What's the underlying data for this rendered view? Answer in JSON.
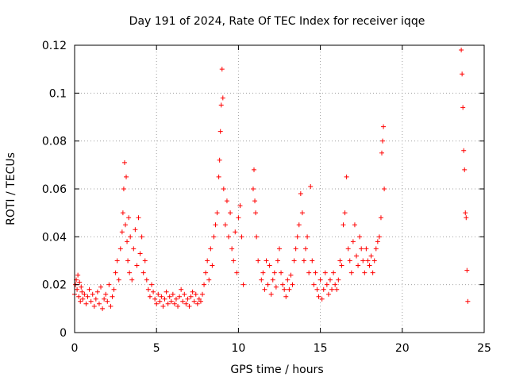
{
  "chart_data": {
    "type": "scatter",
    "title": "Day 191 of 2024, Rate Of TEC Index for receiver iqqe",
    "xlabel": "GPS time / hours",
    "ylabel": "ROTI / TECUs",
    "xlim": [
      0,
      25
    ],
    "ylim": [
      0,
      0.12
    ],
    "xticks": [
      "0",
      "5",
      "10",
      "15",
      "20",
      "25"
    ],
    "yticks": [
      "0",
      "0.02",
      "0.04",
      "0.06",
      "0.08",
      "0.1",
      "0.12"
    ],
    "grid": true,
    "marker": "+",
    "color": "#ff0000",
    "series": [
      {
        "x": [
          0.0,
          0.05,
          0.1,
          0.15,
          0.2,
          0.25,
          0.3,
          0.35,
          0.4,
          0.45,
          0.5,
          0.6,
          0.7,
          0.8,
          0.9,
          1.0,
          1.1,
          1.2,
          1.3,
          1.4,
          1.5,
          1.6,
          1.7,
          1.8,
          1.9,
          2.0,
          2.1,
          2.2,
          2.3,
          2.4,
          2.5,
          2.6,
          2.7,
          2.8,
          2.9,
          2.95,
          3.0,
          3.05,
          3.1,
          3.15,
          3.2,
          3.25,
          3.3,
          3.35,
          3.4,
          3.5,
          3.6,
          3.7,
          3.8,
          3.9,
          4.0,
          4.1,
          4.2,
          4.3,
          4.4,
          4.5,
          4.6,
          4.7,
          4.8,
          4.9,
          5.0,
          5.1,
          5.2,
          5.3,
          5.4,
          5.5,
          5.6,
          5.7,
          5.8,
          5.9,
          6.0,
          6.1,
          6.2,
          6.3,
          6.4,
          6.5,
          6.6,
          6.7,
          6.8,
          6.9,
          7.0,
          7.1,
          7.2,
          7.3,
          7.4,
          7.5,
          7.6,
          7.7,
          7.8,
          7.9,
          8.0,
          8.1,
          8.2,
          8.3,
          8.4,
          8.5,
          8.6,
          8.7,
          8.8,
          8.85,
          8.9,
          8.95,
          9.0,
          9.05,
          9.1,
          9.2,
          9.3,
          9.4,
          9.5,
          9.6,
          9.7,
          9.8,
          9.9,
          10.0,
          10.1,
          10.2,
          10.3,
          10.9,
          10.95,
          11.0,
          11.05,
          11.1,
          11.2,
          11.4,
          11.5,
          11.6,
          11.7,
          11.8,
          11.9,
          12.0,
          12.1,
          12.2,
          12.3,
          12.4,
          12.5,
          12.6,
          12.7,
          12.8,
          12.9,
          13.0,
          13.1,
          13.2,
          13.3,
          13.4,
          13.5,
          13.6,
          13.7,
          13.8,
          13.9,
          14.0,
          14.1,
          14.2,
          14.3,
          14.4,
          14.5,
          14.6,
          14.7,
          14.8,
          14.9,
          15.0,
          15.1,
          15.2,
          15.3,
          15.4,
          15.5,
          15.6,
          15.7,
          15.8,
          15.9,
          16.0,
          16.1,
          16.2,
          16.3,
          16.4,
          16.5,
          16.6,
          16.7,
          16.8,
          16.9,
          17.0,
          17.1,
          17.2,
          17.3,
          17.4,
          17.5,
          17.6,
          17.7,
          17.8,
          17.9,
          18.0,
          18.1,
          18.2,
          18.3,
          18.4,
          18.5,
          18.6,
          18.7,
          18.75,
          18.8,
          18.85,
          18.9,
          23.6,
          23.65,
          23.7,
          23.75,
          23.8,
          23.85,
          23.9,
          23.95,
          24.0
        ],
        "y": [
          0.016,
          0.02,
          0.022,
          0.018,
          0.024,
          0.015,
          0.021,
          0.013,
          0.019,
          0.017,
          0.014,
          0.016,
          0.012,
          0.015,
          0.018,
          0.013,
          0.016,
          0.011,
          0.014,
          0.017,
          0.012,
          0.019,
          0.01,
          0.014,
          0.016,
          0.013,
          0.02,
          0.011,
          0.015,
          0.018,
          0.025,
          0.03,
          0.022,
          0.035,
          0.042,
          0.05,
          0.06,
          0.071,
          0.045,
          0.065,
          0.038,
          0.03,
          0.048,
          0.025,
          0.04,
          0.022,
          0.035,
          0.043,
          0.028,
          0.048,
          0.033,
          0.04,
          0.025,
          0.03,
          0.022,
          0.018,
          0.015,
          0.02,
          0.017,
          0.014,
          0.012,
          0.016,
          0.013,
          0.015,
          0.011,
          0.014,
          0.017,
          0.012,
          0.015,
          0.013,
          0.016,
          0.012,
          0.014,
          0.011,
          0.015,
          0.018,
          0.013,
          0.016,
          0.012,
          0.014,
          0.011,
          0.015,
          0.017,
          0.013,
          0.016,
          0.012,
          0.014,
          0.013,
          0.016,
          0.02,
          0.025,
          0.03,
          0.022,
          0.035,
          0.028,
          0.04,
          0.045,
          0.05,
          0.065,
          0.072,
          0.084,
          0.095,
          0.11,
          0.098,
          0.06,
          0.045,
          0.055,
          0.04,
          0.05,
          0.035,
          0.03,
          0.042,
          0.025,
          0.048,
          0.053,
          0.04,
          0.02,
          0.06,
          0.068,
          0.055,
          0.05,
          0.04,
          0.03,
          0.022,
          0.025,
          0.018,
          0.03,
          0.02,
          0.028,
          0.016,
          0.022,
          0.025,
          0.019,
          0.03,
          0.035,
          0.025,
          0.02,
          0.018,
          0.015,
          0.022,
          0.018,
          0.024,
          0.02,
          0.03,
          0.035,
          0.04,
          0.045,
          0.058,
          0.05,
          0.03,
          0.035,
          0.04,
          0.025,
          0.061,
          0.03,
          0.02,
          0.025,
          0.018,
          0.015,
          0.022,
          0.014,
          0.018,
          0.025,
          0.02,
          0.016,
          0.022,
          0.018,
          0.025,
          0.02,
          0.018,
          0.022,
          0.03,
          0.028,
          0.045,
          0.05,
          0.065,
          0.035,
          0.03,
          0.025,
          0.038,
          0.045,
          0.032,
          0.028,
          0.04,
          0.035,
          0.03,
          0.025,
          0.035,
          0.03,
          0.028,
          0.032,
          0.025,
          0.03,
          0.035,
          0.038,
          0.04,
          0.048,
          0.075,
          0.08,
          0.086,
          0.06,
          0.118,
          0.108,
          0.094,
          0.076,
          0.068,
          0.05,
          0.048,
          0.026,
          0.013
        ]
      }
    ]
  }
}
